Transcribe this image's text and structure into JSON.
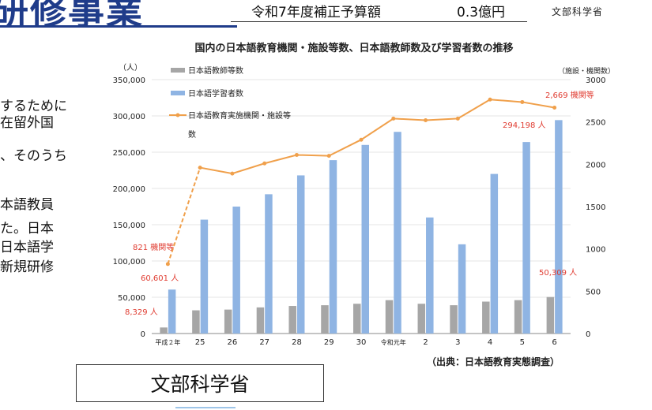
{
  "header": {
    "title_fragment": "研修事業",
    "budget_label": "令和7年度補正予算額",
    "budget_amount": "0.3億円",
    "ministry": "文部科学省"
  },
  "body_text": {
    "line1": "するために",
    "line2": "在留外国",
    "line3": "、そのうち",
    "line4": "本語教員",
    "line5": "た。日本",
    "line6": "日本語学",
    "line7": "新規研修"
  },
  "footer": {
    "ministry_box": "文部科学省"
  },
  "chart_data": {
    "type": "bar",
    "title": "国内の日本語教育機関・施設等数、日本語教師数及び学習者数の推移",
    "y_unit_left": "（人）",
    "y_unit_right": "（施設・機関数）",
    "source": "（出典：日本語教育実態調査）",
    "categories": [
      "平成２年",
      "25",
      "26",
      "27",
      "28",
      "29",
      "30",
      "令和元年",
      "2",
      "3",
      "4",
      "5",
      "6"
    ],
    "ylim": [
      0,
      350000
    ],
    "y2lim": [
      0,
      3000
    ],
    "yticks": [
      "0",
      "50,000",
      "100,000",
      "150,000",
      "200,000",
      "250,000",
      "300,000",
      "350,000"
    ],
    "y2ticks": [
      "0",
      "500",
      "1000",
      "1500",
      "2000",
      "2500",
      "3000"
    ],
    "legend_position": "top-left",
    "legend": {
      "teachers": "日本語教師等数",
      "learners": "日本語学習者数",
      "institutions_line1": "日本語教育実施機関・施設等",
      "institutions_line2": "数"
    },
    "series": [
      {
        "name": "日本語教師等数",
        "color": "#a6a6a6",
        "values": [
          8329,
          32000,
          33000,
          36000,
          38000,
          39000,
          41000,
          46000,
          41000,
          39000,
          44000,
          46000,
          50309
        ]
      },
      {
        "name": "日本語学習者数",
        "color": "#8fb4e3",
        "values": [
          60601,
          157000,
          175000,
          192000,
          218000,
          239000,
          260000,
          278000,
          160000,
          123000,
          220000,
          264000,
          294198
        ]
      },
      {
        "name": "日本語教育実施機関・施設等数",
        "color": "#f0a04b",
        "values": [
          821,
          1960,
          1890,
          2010,
          2110,
          2100,
          2290,
          2540,
          2520,
          2540,
          2765,
          2735,
          2669
        ]
      }
    ],
    "annotations": {
      "inst_first": "821 機関等",
      "inst_last": "2,669 機関等",
      "learners_first": "60,601 人",
      "learners_last": "294,198 人",
      "teachers_first": "8,329 人",
      "teachers_last": "50,309 人"
    },
    "annotation_color": "#e03c31"
  }
}
